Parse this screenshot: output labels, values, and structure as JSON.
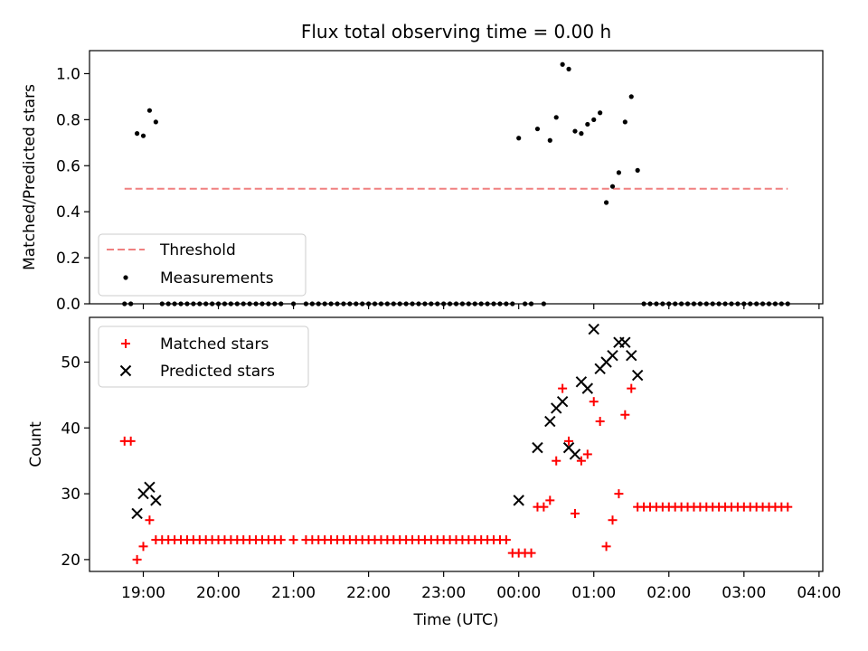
{
  "chart_data": [
    {
      "type": "scatter",
      "title": "Flux total observing time = 0.00 h",
      "xlabel": "",
      "ylabel": "Matched/Predicted stars",
      "xlim": [
        "18:17",
        "04:03"
      ],
      "ylim": [
        0,
        1.1
      ],
      "yticks": [
        "0.0",
        "0.2",
        "0.4",
        "0.6",
        "0.8",
        "1.0"
      ],
      "grid": false,
      "legend_position": "lower-left",
      "threshold": {
        "name": "Threshold",
        "value": 0.5,
        "x_start": "18:45",
        "x_end": "03:35",
        "color": "#f08080",
        "style": "dashed"
      },
      "series": [
        {
          "name": "Measurements",
          "color": "#000000",
          "marker": "dot",
          "points": [
            [
              "18:45",
              0
            ],
            [
              "18:50",
              0
            ],
            [
              "18:55",
              0.74
            ],
            [
              "19:00",
              0.73
            ],
            [
              "19:05",
              0.84
            ],
            [
              "19:10",
              0.79
            ],
            [
              "19:15",
              0
            ],
            [
              "19:20",
              0
            ],
            [
              "19:25",
              0
            ],
            [
              "19:30",
              0
            ],
            [
              "19:35",
              0
            ],
            [
              "19:40",
              0
            ],
            [
              "19:45",
              0
            ],
            [
              "19:50",
              0
            ],
            [
              "19:55",
              0
            ],
            [
              "20:00",
              0
            ],
            [
              "20:05",
              0
            ],
            [
              "20:10",
              0
            ],
            [
              "20:15",
              0
            ],
            [
              "20:20",
              0
            ],
            [
              "20:25",
              0
            ],
            [
              "20:30",
              0
            ],
            [
              "20:35",
              0
            ],
            [
              "20:40",
              0
            ],
            [
              "20:45",
              0
            ],
            [
              "20:50",
              0
            ],
            [
              "21:00",
              0
            ],
            [
              "21:10",
              0
            ],
            [
              "21:15",
              0
            ],
            [
              "21:20",
              0
            ],
            [
              "21:25",
              0
            ],
            [
              "21:30",
              0
            ],
            [
              "21:35",
              0
            ],
            [
              "21:40",
              0
            ],
            [
              "21:45",
              0
            ],
            [
              "21:50",
              0
            ],
            [
              "21:55",
              0
            ],
            [
              "22:00",
              0
            ],
            [
              "22:05",
              0
            ],
            [
              "22:10",
              0
            ],
            [
              "22:15",
              0
            ],
            [
              "22:20",
              0
            ],
            [
              "22:25",
              0
            ],
            [
              "22:30",
              0
            ],
            [
              "22:35",
              0
            ],
            [
              "22:40",
              0
            ],
            [
              "22:45",
              0
            ],
            [
              "22:50",
              0
            ],
            [
              "22:55",
              0
            ],
            [
              "23:00",
              0
            ],
            [
              "23:05",
              0
            ],
            [
              "23:10",
              0
            ],
            [
              "23:15",
              0
            ],
            [
              "23:20",
              0
            ],
            [
              "23:25",
              0
            ],
            [
              "23:30",
              0
            ],
            [
              "23:35",
              0
            ],
            [
              "23:40",
              0
            ],
            [
              "23:45",
              0
            ],
            [
              "23:50",
              0
            ],
            [
              "23:55",
              0
            ],
            [
              "00:00",
              0.72
            ],
            [
              "00:05",
              0
            ],
            [
              "00:10",
              0
            ],
            [
              "00:15",
              0.76
            ],
            [
              "00:20",
              0
            ],
            [
              "00:25",
              0.71
            ],
            [
              "00:30",
              0.81
            ],
            [
              "00:35",
              1.04
            ],
            [
              "00:40",
              1.02
            ],
            [
              "00:45",
              0.75
            ],
            [
              "00:50",
              0.74
            ],
            [
              "00:55",
              0.78
            ],
            [
              "01:00",
              0.8
            ],
            [
              "01:05",
              0.83
            ],
            [
              "01:10",
              0.44
            ],
            [
              "01:15",
              0.51
            ],
            [
              "01:20",
              0.57
            ],
            [
              "01:25",
              0.79
            ],
            [
              "01:30",
              0.9
            ],
            [
              "01:35",
              0.58
            ],
            [
              "01:40",
              0
            ],
            [
              "01:45",
              0
            ],
            [
              "01:50",
              0
            ],
            [
              "01:55",
              0
            ],
            [
              "02:00",
              0
            ],
            [
              "02:05",
              0
            ],
            [
              "02:10",
              0
            ],
            [
              "02:15",
              0
            ],
            [
              "02:20",
              0
            ],
            [
              "02:25",
              0
            ],
            [
              "02:30",
              0
            ],
            [
              "02:35",
              0
            ],
            [
              "02:40",
              0
            ],
            [
              "02:45",
              0
            ],
            [
              "02:50",
              0
            ],
            [
              "02:55",
              0
            ],
            [
              "03:00",
              0
            ],
            [
              "03:05",
              0
            ],
            [
              "03:10",
              0
            ],
            [
              "03:15",
              0
            ],
            [
              "03:20",
              0
            ],
            [
              "03:25",
              0
            ],
            [
              "03:30",
              0
            ],
            [
              "03:35",
              0
            ]
          ]
        }
      ]
    },
    {
      "type": "scatter",
      "title": "",
      "xlabel": "Time (UTC)",
      "ylabel": "Count",
      "xlim": [
        "18:17",
        "04:03"
      ],
      "ylim": [
        18.2,
        56.8
      ],
      "xticks": [
        "19:00",
        "20:00",
        "21:00",
        "22:00",
        "23:00",
        "00:00",
        "01:00",
        "02:00",
        "03:00",
        "04:00"
      ],
      "yticks": [
        "20",
        "30",
        "40",
        "50"
      ],
      "grid": false,
      "legend_position": "top-left",
      "series": [
        {
          "name": "Matched stars",
          "color": "#ff0000",
          "marker": "plus",
          "points": [
            [
              "18:45",
              38
            ],
            [
              "18:50",
              38
            ],
            [
              "18:55",
              20
            ],
            [
              "19:00",
              22
            ],
            [
              "19:05",
              26
            ],
            [
              "19:10",
              23
            ],
            [
              "19:15",
              23
            ],
            [
              "19:20",
              23
            ],
            [
              "19:25",
              23
            ],
            [
              "19:30",
              23
            ],
            [
              "19:35",
              23
            ],
            [
              "19:40",
              23
            ],
            [
              "19:45",
              23
            ],
            [
              "19:50",
              23
            ],
            [
              "19:55",
              23
            ],
            [
              "20:00",
              23
            ],
            [
              "20:05",
              23
            ],
            [
              "20:10",
              23
            ],
            [
              "20:15",
              23
            ],
            [
              "20:20",
              23
            ],
            [
              "20:25",
              23
            ],
            [
              "20:30",
              23
            ],
            [
              "20:35",
              23
            ],
            [
              "20:40",
              23
            ],
            [
              "20:45",
              23
            ],
            [
              "20:50",
              23
            ],
            [
              "21:00",
              23
            ],
            [
              "21:10",
              23
            ],
            [
              "21:15",
              23
            ],
            [
              "21:20",
              23
            ],
            [
              "21:25",
              23
            ],
            [
              "21:30",
              23
            ],
            [
              "21:35",
              23
            ],
            [
              "21:40",
              23
            ],
            [
              "21:45",
              23
            ],
            [
              "21:50",
              23
            ],
            [
              "21:55",
              23
            ],
            [
              "22:00",
              23
            ],
            [
              "22:05",
              23
            ],
            [
              "22:10",
              23
            ],
            [
              "22:15",
              23
            ],
            [
              "22:20",
              23
            ],
            [
              "22:25",
              23
            ],
            [
              "22:30",
              23
            ],
            [
              "22:35",
              23
            ],
            [
              "22:40",
              23
            ],
            [
              "22:45",
              23
            ],
            [
              "22:50",
              23
            ],
            [
              "22:55",
              23
            ],
            [
              "23:00",
              23
            ],
            [
              "23:05",
              23
            ],
            [
              "23:10",
              23
            ],
            [
              "23:15",
              23
            ],
            [
              "23:20",
              23
            ],
            [
              "23:25",
              23
            ],
            [
              "23:30",
              23
            ],
            [
              "23:35",
              23
            ],
            [
              "23:40",
              23
            ],
            [
              "23:45",
              23
            ],
            [
              "23:50",
              23
            ],
            [
              "23:55",
              21
            ],
            [
              "00:00",
              21
            ],
            [
              "00:05",
              21
            ],
            [
              "00:10",
              21
            ],
            [
              "00:15",
              28
            ],
            [
              "00:20",
              28
            ],
            [
              "00:25",
              29
            ],
            [
              "00:30",
              35
            ],
            [
              "00:35",
              46
            ],
            [
              "00:40",
              38
            ],
            [
              "00:45",
              27
            ],
            [
              "00:50",
              35
            ],
            [
              "00:55",
              36
            ],
            [
              "01:00",
              44
            ],
            [
              "01:05",
              41
            ],
            [
              "01:10",
              22
            ],
            [
              "01:15",
              26
            ],
            [
              "01:20",
              30
            ],
            [
              "01:25",
              42
            ],
            [
              "01:30",
              46
            ],
            [
              "01:35",
              28
            ],
            [
              "01:40",
              28
            ],
            [
              "01:45",
              28
            ],
            [
              "01:50",
              28
            ],
            [
              "01:55",
              28
            ],
            [
              "02:00",
              28
            ],
            [
              "02:05",
              28
            ],
            [
              "02:10",
              28
            ],
            [
              "02:15",
              28
            ],
            [
              "02:20",
              28
            ],
            [
              "02:25",
              28
            ],
            [
              "02:30",
              28
            ],
            [
              "02:35",
              28
            ],
            [
              "02:40",
              28
            ],
            [
              "02:45",
              28
            ],
            [
              "02:50",
              28
            ],
            [
              "02:55",
              28
            ],
            [
              "03:00",
              28
            ],
            [
              "03:05",
              28
            ],
            [
              "03:10",
              28
            ],
            [
              "03:15",
              28
            ],
            [
              "03:20",
              28
            ],
            [
              "03:25",
              28
            ],
            [
              "03:30",
              28
            ],
            [
              "03:35",
              28
            ]
          ]
        },
        {
          "name": "Predicted stars",
          "color": "#000000",
          "marker": "x",
          "points": [
            [
              "18:55",
              27
            ],
            [
              "19:00",
              30
            ],
            [
              "19:05",
              31
            ],
            [
              "19:10",
              29
            ],
            [
              "00:00",
              29
            ],
            [
              "00:15",
              37
            ],
            [
              "00:25",
              41
            ],
            [
              "00:30",
              43
            ],
            [
              "00:35",
              44
            ],
            [
              "00:40",
              37
            ],
            [
              "00:45",
              36
            ],
            [
              "00:50",
              47
            ],
            [
              "00:55",
              46
            ],
            [
              "01:00",
              55
            ],
            [
              "01:05",
              49
            ],
            [
              "01:10",
              50
            ],
            [
              "01:15",
              51
            ],
            [
              "01:20",
              53
            ],
            [
              "01:25",
              53
            ],
            [
              "01:30",
              51
            ],
            [
              "01:35",
              48
            ]
          ]
        }
      ]
    }
  ]
}
